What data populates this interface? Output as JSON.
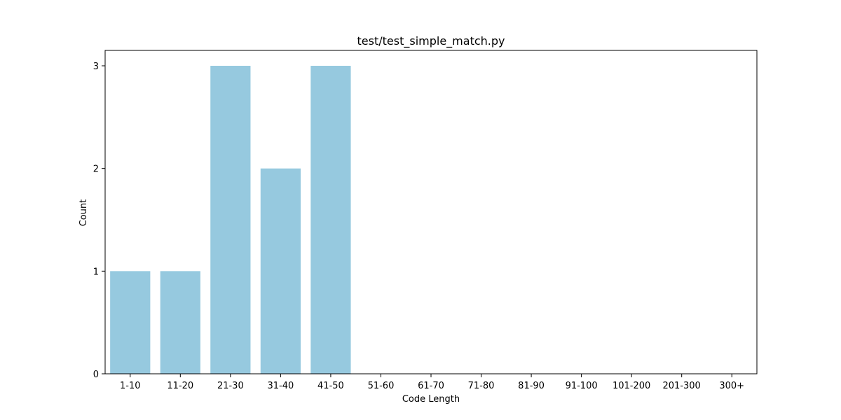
{
  "chart_data": {
    "type": "bar",
    "title": "test/test_simple_match.py",
    "xlabel": "Code Length",
    "ylabel": "Count",
    "categories": [
      "1-10",
      "11-20",
      "21-30",
      "31-40",
      "41-50",
      "51-60",
      "61-70",
      "71-80",
      "81-90",
      "91-100",
      "101-200",
      "201-300",
      "300+"
    ],
    "values": [
      1,
      1,
      3,
      2,
      3,
      0,
      0,
      0,
      0,
      0,
      0,
      0,
      0
    ],
    "yticks": [
      0,
      1,
      2,
      3
    ],
    "ylim": [
      0,
      3.15
    ],
    "grid": false,
    "bar_color": "#96c9df"
  }
}
